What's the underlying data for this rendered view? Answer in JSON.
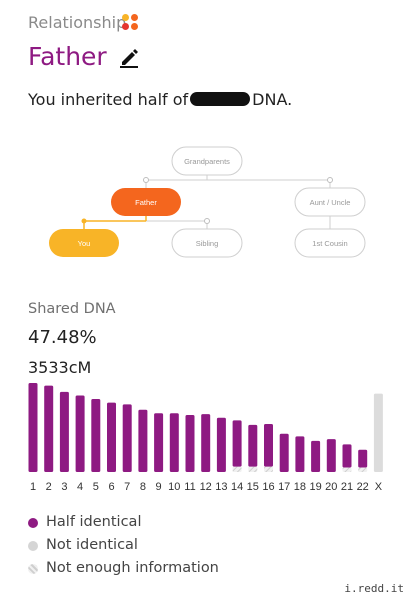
{
  "header": {
    "relationship_label": "Relationship",
    "title": "Father",
    "inherit_prefix": "You inherited half of",
    "inherit_suffix": "DNA."
  },
  "tree": {
    "grandparents": "Grandparents",
    "father": "Father",
    "aunt_uncle": "Aunt / Uncle",
    "you": "You",
    "sibling": "Sibling",
    "first_cousin": "1st Cousin"
  },
  "shared": {
    "label": "Shared DNA",
    "percent": "47.48%",
    "cm": "3533cM"
  },
  "colors": {
    "accent": "#8e1a82",
    "father_node": "#f4661e",
    "you_node": "#f8b427",
    "not_identical": "#dcdcdc",
    "not_enough_info": "#e8e8e8"
  },
  "chart_data": {
    "type": "bar",
    "categories": [
      "1",
      "2",
      "3",
      "4",
      "5",
      "6",
      "7",
      "8",
      "9",
      "10",
      "11",
      "12",
      "13",
      "14",
      "15",
      "16",
      "17",
      "18",
      "19",
      "20",
      "21",
      "22",
      "X"
    ],
    "series": [
      {
        "name": "Half identical",
        "values": [
          1.0,
          0.97,
          0.9,
          0.86,
          0.82,
          0.78,
          0.76,
          0.7,
          0.66,
          0.66,
          0.64,
          0.65,
          0.61,
          0.52,
          0.47,
          0.48,
          0.43,
          0.4,
          0.35,
          0.37,
          0.26,
          0.2,
          0
        ]
      },
      {
        "name": "Not enough information",
        "values": [
          0,
          0,
          0,
          0,
          0,
          0,
          0,
          0,
          0,
          0,
          0,
          0,
          0,
          0.06,
          0.06,
          0.06,
          0,
          0,
          0,
          0,
          0.05,
          0.05,
          0
        ]
      },
      {
        "name": "Not identical",
        "values": [
          0,
          0,
          0,
          0,
          0,
          0,
          0,
          0,
          0,
          0,
          0,
          0,
          0,
          0,
          0,
          0,
          0,
          0,
          0,
          0,
          0,
          0,
          0.88
        ]
      }
    ]
  },
  "legend": [
    {
      "label": "Half identical",
      "color": "#8e1a82"
    },
    {
      "label": "Not identical",
      "color": "#d5d5d5"
    },
    {
      "label": "Not enough information",
      "color": "hatch"
    }
  ],
  "watermark": "i.redd.it"
}
